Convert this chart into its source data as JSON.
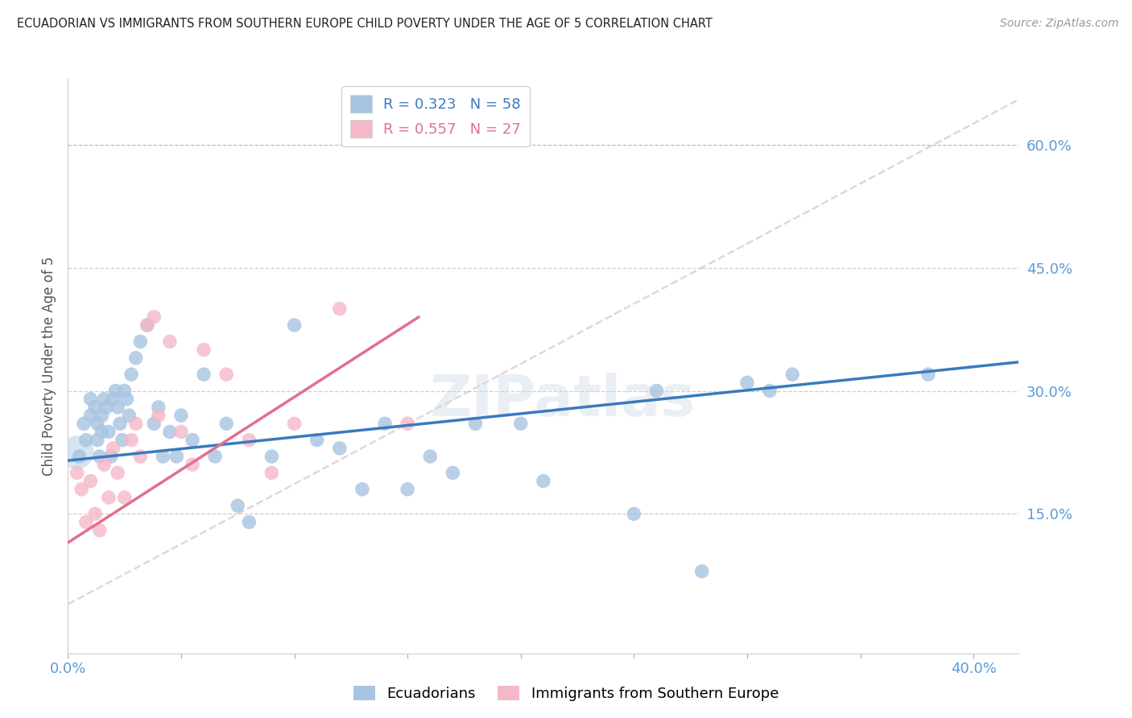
{
  "title": "ECUADORIAN VS IMMIGRANTS FROM SOUTHERN EUROPE CHILD POVERTY UNDER THE AGE OF 5 CORRELATION CHART",
  "source": "Source: ZipAtlas.com",
  "ylabel": "Child Poverty Under the Age of 5",
  "watermark": "ZIPatlas",
  "xlim": [
    0.0,
    0.42
  ],
  "ylim": [
    -0.02,
    0.68
  ],
  "xticks": [
    0.0,
    0.4
  ],
  "xtick_labels": [
    "0.0%",
    "40.0%"
  ],
  "yticks_right": [
    0.15,
    0.3,
    0.45,
    0.6
  ],
  "ytick_labels_right": [
    "15.0%",
    "30.0%",
    "45.0%",
    "60.0%"
  ],
  "blue_color": "#a8c4e0",
  "blue_line_color": "#3a7abf",
  "pink_color": "#f4b8c8",
  "pink_line_color": "#e07090",
  "dashed_line_color": "#d8b8c4",
  "R_blue": 0.323,
  "N_blue": 58,
  "R_pink": 0.557,
  "N_pink": 27,
  "legend_label_blue": "Ecuadorians",
  "legend_label_pink": "Immigrants from Southern Europe",
  "background_color": "#ffffff",
  "grid_color": "#bbbbbb",
  "axis_label_color": "#5b9bd5",
  "title_color": "#222222",
  "blue_scatter_x": [
    0.005,
    0.007,
    0.008,
    0.01,
    0.01,
    0.012,
    0.013,
    0.013,
    0.014,
    0.015,
    0.015,
    0.016,
    0.017,
    0.018,
    0.019,
    0.02,
    0.021,
    0.022,
    0.023,
    0.024,
    0.025,
    0.026,
    0.027,
    0.028,
    0.03,
    0.032,
    0.035,
    0.038,
    0.04,
    0.042,
    0.045,
    0.048,
    0.05,
    0.055,
    0.06,
    0.065,
    0.07,
    0.075,
    0.08,
    0.09,
    0.1,
    0.11,
    0.12,
    0.13,
    0.14,
    0.15,
    0.16,
    0.17,
    0.18,
    0.2,
    0.21,
    0.25,
    0.26,
    0.28,
    0.3,
    0.31,
    0.32,
    0.38
  ],
  "blue_scatter_y": [
    0.22,
    0.26,
    0.24,
    0.27,
    0.29,
    0.28,
    0.24,
    0.26,
    0.22,
    0.25,
    0.27,
    0.29,
    0.28,
    0.25,
    0.22,
    0.29,
    0.3,
    0.28,
    0.26,
    0.24,
    0.3,
    0.29,
    0.27,
    0.32,
    0.34,
    0.36,
    0.38,
    0.26,
    0.28,
    0.22,
    0.25,
    0.22,
    0.27,
    0.24,
    0.32,
    0.22,
    0.26,
    0.16,
    0.14,
    0.22,
    0.38,
    0.24,
    0.23,
    0.18,
    0.26,
    0.18,
    0.22,
    0.2,
    0.26,
    0.26,
    0.19,
    0.15,
    0.3,
    0.08,
    0.31,
    0.3,
    0.32,
    0.32
  ],
  "pink_scatter_x": [
    0.004,
    0.006,
    0.008,
    0.01,
    0.012,
    0.014,
    0.016,
    0.018,
    0.02,
    0.022,
    0.025,
    0.028,
    0.03,
    0.032,
    0.035,
    0.038,
    0.04,
    0.045,
    0.05,
    0.055,
    0.06,
    0.07,
    0.08,
    0.09,
    0.1,
    0.12,
    0.15
  ],
  "pink_scatter_y": [
    0.2,
    0.18,
    0.14,
    0.19,
    0.15,
    0.13,
    0.21,
    0.17,
    0.23,
    0.2,
    0.17,
    0.24,
    0.26,
    0.22,
    0.38,
    0.39,
    0.27,
    0.36,
    0.25,
    0.21,
    0.35,
    0.32,
    0.24,
    0.2,
    0.26,
    0.4,
    0.26
  ],
  "blue_line_x": [
    0.0,
    0.42
  ],
  "blue_line_y": [
    0.215,
    0.335
  ],
  "pink_line_x": [
    0.0,
    0.155
  ],
  "pink_line_y": [
    0.115,
    0.39
  ],
  "dashed_line_x": [
    0.0,
    0.42
  ],
  "dashed_line_y": [
    0.04,
    0.655
  ]
}
